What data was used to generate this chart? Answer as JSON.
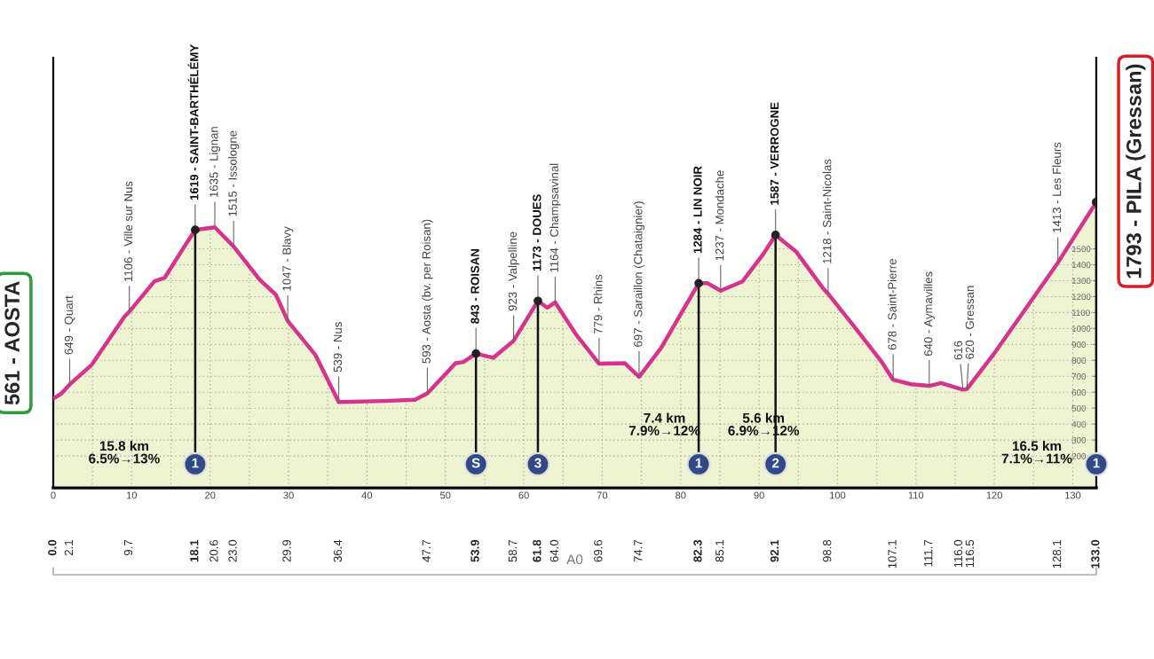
{
  "chart_data": {
    "type": "area",
    "x": [
      0,
      1.0,
      2.1,
      4.9,
      9.1,
      9.7,
      12.9,
      14.2,
      16.6,
      18.1,
      20.6,
      23.0,
      26.3,
      28.4,
      29.9,
      33.4,
      36.4,
      38.0,
      42,
      46.1,
      47.7,
      51.3,
      52.3,
      53.9,
      56.1,
      58.7,
      61.8,
      63.0,
      64.0,
      66.6,
      69.6,
      72.9,
      74.7,
      77.5,
      82.3,
      83.4,
      85.1,
      87.9,
      90.5,
      92.1,
      94.7,
      98.1,
      98.8,
      102.3,
      105.6,
      107.1,
      109.4,
      111.7,
      113.2,
      116.0,
      116.5,
      119.9,
      124.1,
      128.1,
      133.0
    ],
    "series": [
      {
        "color": "#d6338f",
        "values": [
          561,
          590,
          649,
          772,
          1076,
          1106,
          1296,
          1318,
          1505,
          1619,
          1635,
          1515,
          1307,
          1211,
          1047,
          836,
          539,
          540,
          545,
          553,
          593,
          782,
          790,
          843,
          816,
          923,
          1173,
          1130,
          1164,
          967,
          779,
          782,
          697,
          878,
          1284,
          1285,
          1237,
          1296,
          1465,
          1587,
          1484,
          1256,
          1218,
          1002,
          793,
          678,
          650,
          640,
          658,
          616,
          620,
          838,
          1131,
          1413,
          1793
        ],
        "value_labels": [
          "561 - AOSTA",
          null,
          "649 - Quart",
          null,
          null,
          "1106 - Ville sur Nus",
          null,
          null,
          null,
          "1619 - SAINT-BARTHÉLÉMY",
          "1635 - Lignan",
          "1515 - Issologne",
          null,
          null,
          "1047 - Blavy",
          null,
          "539 - Nus",
          null,
          null,
          null,
          "593 - Aosta (bv. per Roisan)",
          null,
          null,
          "843 - ROISAN",
          null,
          "923 - Valpelline",
          "1173 - DOUES",
          null,
          "1164 - Champsavinal",
          null,
          "779 - Rhins",
          null,
          "697 - Saraillon (Chataignier)",
          null,
          "1284 - LIN NOIR",
          null,
          "1237 - Mondache",
          null,
          null,
          "1587 - VERROGNE",
          null,
          null,
          "1218 - Saint-Nicolas",
          null,
          null,
          "678 - Saint-Pierre",
          null,
          "640 - Aymavilles",
          null,
          "616",
          "620 - Gressan",
          null,
          null,
          "1413 - Les Fleurs",
          "1793 - PILA (Gressan)"
        ]
      }
    ],
    "xlim": [
      0,
      133
    ],
    "x2lim": [
      0,
      133
    ],
    "x2ticks": [
      0,
      10,
      20,
      30,
      40,
      50,
      60,
      70,
      80,
      90,
      100,
      110,
      120,
      130
    ],
    "xticks": [
      {
        "value": 0,
        "label": "0.0"
      },
      {
        "value": 2.1,
        "label": "2.1"
      },
      {
        "value": 9.7,
        "label": "9.7"
      },
      {
        "value": 18.1,
        "label": "18.1"
      },
      {
        "value": 20.6,
        "label": "20.6"
      },
      {
        "value": 23.0,
        "label": "23.0"
      },
      {
        "value": 29.9,
        "label": "29.9"
      },
      {
        "value": 36.4,
        "label": "36.4"
      },
      {
        "value": 47.7,
        "label": "47.7"
      },
      {
        "value": 53.9,
        "label": "53.9"
      },
      {
        "value": 58.7,
        "label": "58.7"
      },
      {
        "value": 61.8,
        "label": "61.8"
      },
      {
        "value": 64.0,
        "label": "64.0"
      },
      {
        "value": 69.6,
        "label": "69.6"
      },
      {
        "value": 74.7,
        "label": "74.7"
      },
      {
        "value": 82.3,
        "label": "82.3"
      },
      {
        "value": 85.1,
        "label": "85.1"
      },
      {
        "value": 92.1,
        "label": "92.1"
      },
      {
        "value": 98.8,
        "label": "98.8"
      },
      {
        "value": 107.1,
        "label": "107.1"
      },
      {
        "value": 111.7,
        "label": "111.7"
      },
      {
        "value": 116.0,
        "label": "116.0"
      },
      {
        "value": 116.5,
        "label": "116.5"
      },
      {
        "value": 128.1,
        "label": "128.1"
      },
      {
        "value": 133.0,
        "label": "133.0"
      }
    ],
    "ylim": [
      0,
      2700
    ],
    "yticks": [
      200,
      300,
      400,
      500,
      600,
      700,
      800,
      900,
      1000,
      1100,
      1200,
      1300,
      1400,
      1500
    ],
    "grid": true,
    "annotations": [
      {
        "text": "1",
        "x": 18.1
      },
      {
        "text": "S",
        "x": 53.9
      },
      {
        "text": "3",
        "x": 61.8
      },
      {
        "text": "1",
        "x": 82.3
      },
      {
        "text": "2",
        "x": 92.1
      },
      {
        "text": "1",
        "x": 133.0
      },
      "15.8 km\n6.5%→13%",
      "7.4 km\n7.9%→12%",
      "5.6 km\n6.9%→12%",
      "16.5 km\n7.1%→11%",
      "A0"
    ]
  }
}
